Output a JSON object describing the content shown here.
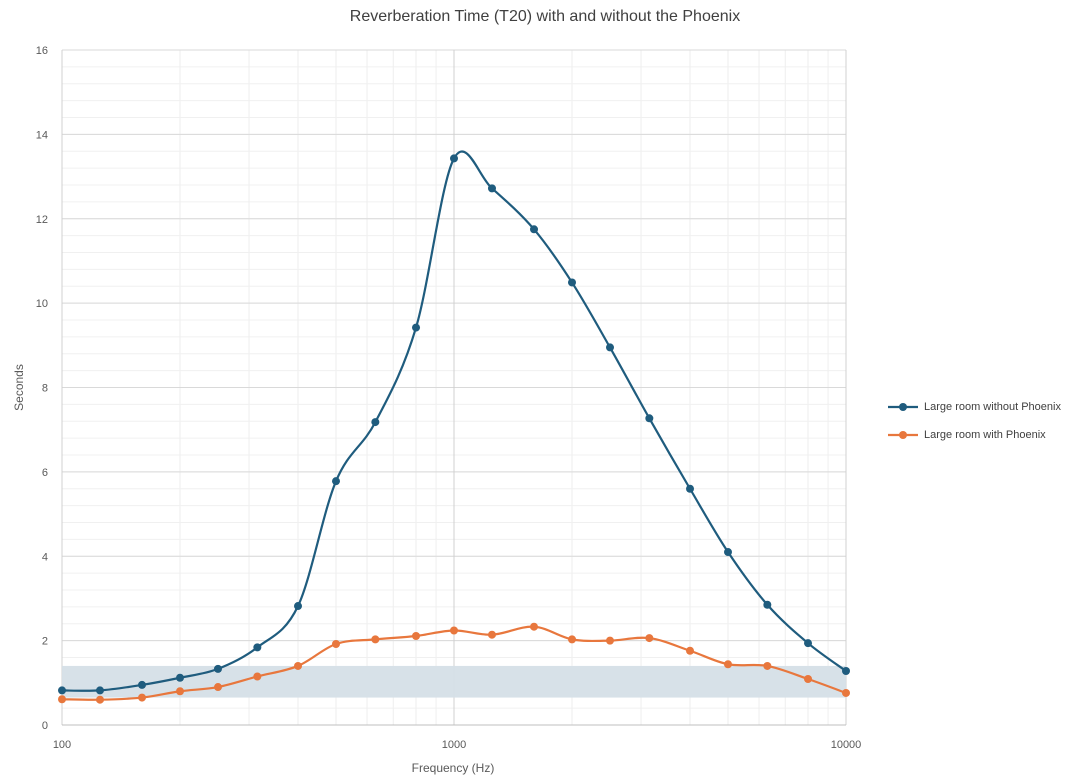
{
  "chart_data": {
    "type": "line",
    "title": "Reverberation Time (T20) with and without the Phoenix",
    "xlabel": "Frequency (Hz)",
    "ylabel": "Seconds",
    "x_scale": "log",
    "xlim": [
      100,
      10000
    ],
    "ylim": [
      0,
      16
    ],
    "x_ticks": [
      100,
      1000,
      10000
    ],
    "y_ticks": [
      0,
      2,
      4,
      6,
      8,
      10,
      12,
      14,
      16
    ],
    "grid": true,
    "legend_position": "right",
    "band": {
      "y_min": 0.65,
      "y_max": 1.4,
      "color": "#d5dfe7"
    },
    "x": [
      100,
      125,
      160,
      200,
      250,
      315,
      400,
      500,
      630,
      800,
      1000,
      1250,
      1600,
      2000,
      2500,
      3150,
      4000,
      5000,
      6300,
      8000,
      10000
    ],
    "series": [
      {
        "name": "Large room without Phoenix",
        "color": "#1f5c7e",
        "values": [
          0.82,
          0.82,
          0.95,
          1.12,
          1.33,
          1.84,
          2.82,
          5.78,
          7.18,
          9.42,
          13.43,
          12.72,
          11.75,
          10.49,
          8.95,
          7.27,
          5.6,
          4.1,
          2.85,
          1.94,
          1.28
        ]
      },
      {
        "name": "Large room with Phoenix",
        "color": "#e8773d",
        "values": [
          0.61,
          0.6,
          0.65,
          0.8,
          0.9,
          1.15,
          1.4,
          1.92,
          2.03,
          2.11,
          2.24,
          2.14,
          2.33,
          2.03,
          2.0,
          2.06,
          1.76,
          1.44,
          1.4,
          1.09,
          0.76
        ]
      }
    ]
  }
}
